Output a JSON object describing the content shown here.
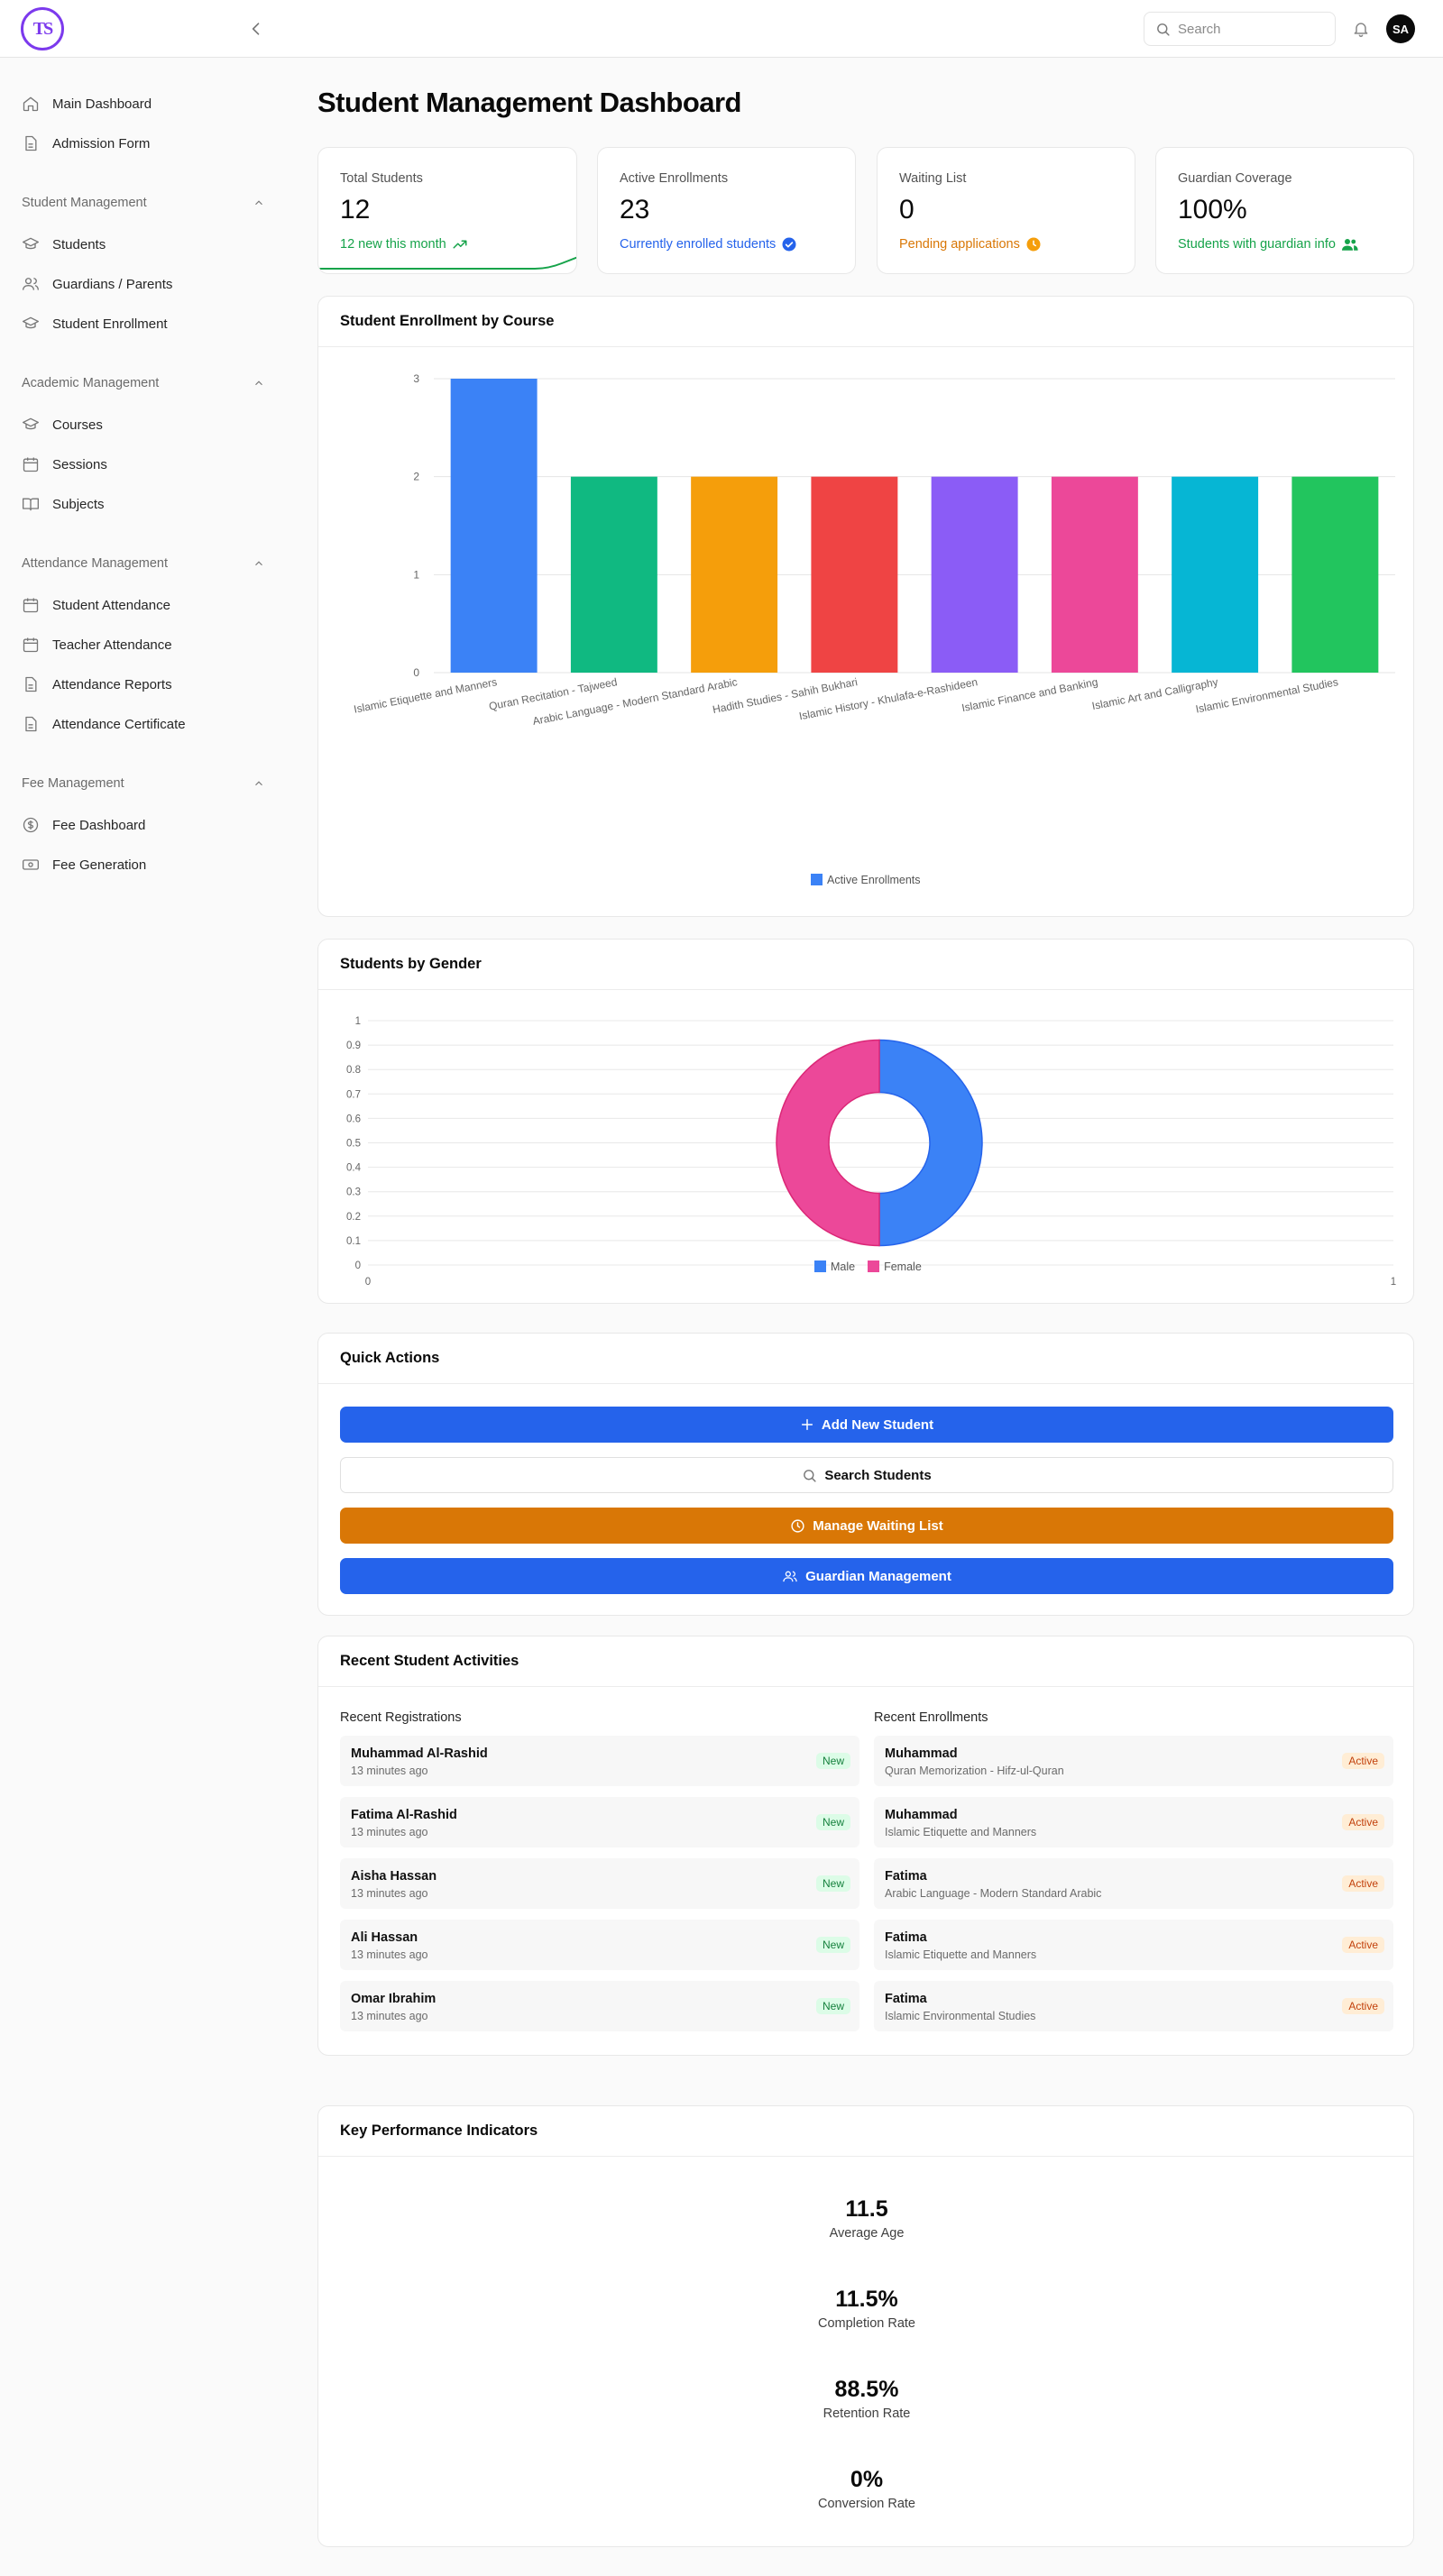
{
  "header": {
    "logo_text": "TS",
    "search_placeholder": "Search",
    "avatar_initials": "SA"
  },
  "sidebar": {
    "top_items": [
      {
        "label": "Main Dashboard",
        "icon": "home-icon"
      },
      {
        "label": "Admission Form",
        "icon": "document-icon"
      }
    ],
    "groups": [
      {
        "title": "Student Management",
        "items": [
          {
            "label": "Students",
            "icon": "graduation-cap-icon"
          },
          {
            "label": "Guardians / Parents",
            "icon": "users-icon"
          },
          {
            "label": "Student Enrollment",
            "icon": "graduation-cap-icon"
          }
        ]
      },
      {
        "title": "Academic Management",
        "items": [
          {
            "label": "Courses",
            "icon": "graduation-cap-icon"
          },
          {
            "label": "Sessions",
            "icon": "calendar-icon"
          },
          {
            "label": "Subjects",
            "icon": "book-icon"
          }
        ]
      },
      {
        "title": "Attendance Management",
        "items": [
          {
            "label": "Student Attendance",
            "icon": "calendar-icon"
          },
          {
            "label": "Teacher Attendance",
            "icon": "calendar-icon"
          },
          {
            "label": "Attendance Reports",
            "icon": "document-icon"
          },
          {
            "label": "Attendance Certificate",
            "icon": "document-icon"
          }
        ]
      },
      {
        "title": "Fee Management",
        "items": [
          {
            "label": "Fee Dashboard",
            "icon": "dollar-circle-icon"
          },
          {
            "label": "Fee Generation",
            "icon": "banknote-icon"
          }
        ]
      }
    ]
  },
  "page": {
    "title": "Student Management Dashboard"
  },
  "stats": [
    {
      "label": "Total Students",
      "value": "12",
      "sub": "12 new this month",
      "color": "#16a34a",
      "icon": "trending-up-icon"
    },
    {
      "label": "Active Enrollments",
      "value": "23",
      "sub": "Currently enrolled students",
      "color": "#2563eb",
      "icon": "check-circle-icon"
    },
    {
      "label": "Waiting List",
      "value": "0",
      "sub": "Pending applications",
      "color": "#d97706",
      "icon": "clock-icon"
    },
    {
      "label": "Guardian Coverage",
      "value": "100%",
      "sub": "Students with guardian info",
      "color": "#16a34a",
      "icon": "users-icon"
    }
  ],
  "enrollment_chart": {
    "title": "Student Enrollment by Course",
    "legend": "Active Enrollments",
    "legend_color": "#3b82f6"
  },
  "gender_chart": {
    "title": "Students by Gender",
    "legend": [
      {
        "label": "Male",
        "color": "#3b82f6"
      },
      {
        "label": "Female",
        "color": "#ec4899"
      }
    ]
  },
  "chart_data": [
    {
      "type": "bar",
      "title": "Student Enrollment by Course",
      "categories": [
        "Islamic Etiquette and Manners",
        "Quran Recitation - Tajweed",
        "Arabic Language - Modern Standard Arabic",
        "Hadith Studies - Sahih Bukhari",
        "Islamic History - Khulafa-e-Rashideen",
        "Islamic Finance and Banking",
        "Islamic Art and Calligraphy",
        "Islamic Environmental Studies"
      ],
      "series": [
        {
          "name": "Active Enrollments",
          "values": [
            3,
            2,
            2,
            2,
            2,
            2,
            2,
            2
          ]
        }
      ],
      "bar_colors": [
        "#3b82f6",
        "#10b981",
        "#f59e0b",
        "#ef4444",
        "#8b5cf6",
        "#ec4899",
        "#06b6d4",
        "#22c55e"
      ],
      "yticks": [
        "0",
        "1",
        "2",
        "3"
      ],
      "ylim": [
        0,
        3
      ],
      "grid": true,
      "legend": "bottom"
    },
    {
      "type": "pie",
      "title": "Students by Gender",
      "categories": [
        "Male",
        "Female"
      ],
      "values": [
        50,
        50
      ],
      "colors": [
        "#3b82f6",
        "#ec4899"
      ],
      "yticks": [
        "0",
        "0.1",
        "0.2",
        "0.3",
        "0.4",
        "0.5",
        "0.6",
        "0.7",
        "0.8",
        "0.9",
        "1"
      ],
      "xticks": [
        "0",
        "1"
      ],
      "legend": "bottom"
    }
  ],
  "quick_actions": {
    "title": "Quick Actions",
    "buttons": [
      {
        "label": "Add New Student",
        "icon": "plus-icon",
        "bg": "#2563eb",
        "fg": "#ffffff"
      },
      {
        "label": "Search Students",
        "icon": "search-icon",
        "bg": "#ffffff",
        "fg": "#111111"
      },
      {
        "label": "Manage Waiting List",
        "icon": "clock-icon",
        "bg": "#d97706",
        "fg": "#ffffff"
      },
      {
        "label": "Guardian Management",
        "icon": "users-icon",
        "bg": "#2563eb",
        "fg": "#ffffff"
      }
    ]
  },
  "activities": {
    "title": "Recent Student Activities",
    "registrations_title": "Recent Registrations",
    "enrollments_title": "Recent Enrollments",
    "registrations": [
      {
        "name": "Muhammad Al-Rashid",
        "sub": "13 minutes ago",
        "badge": "New"
      },
      {
        "name": "Fatima Al-Rashid",
        "sub": "13 minutes ago",
        "badge": "New"
      },
      {
        "name": "Aisha Hassan",
        "sub": "13 minutes ago",
        "badge": "New"
      },
      {
        "name": "Ali Hassan",
        "sub": "13 minutes ago",
        "badge": "New"
      },
      {
        "name": "Omar Ibrahim",
        "sub": "13 minutes ago",
        "badge": "New"
      }
    ],
    "enrollments": [
      {
        "name": "Muhammad",
        "sub": "Quran Memorization - Hifz-ul-Quran",
        "badge": "Active"
      },
      {
        "name": "Muhammad",
        "sub": "Islamic Etiquette and Manners",
        "badge": "Active"
      },
      {
        "name": "Fatima",
        "sub": "Arabic Language - Modern Standard Arabic",
        "badge": "Active"
      },
      {
        "name": "Fatima",
        "sub": "Islamic Etiquette and Manners",
        "badge": "Active"
      },
      {
        "name": "Fatima",
        "sub": "Islamic Environmental Studies",
        "badge": "Active"
      }
    ]
  },
  "kpis": {
    "title": "Key Performance Indicators",
    "items": [
      {
        "value": "11.5",
        "label": "Average Age"
      },
      {
        "value": "11.5%",
        "label": "Completion Rate"
      },
      {
        "value": "88.5%",
        "label": "Retention Rate"
      },
      {
        "value": "0%",
        "label": "Conversion Rate"
      }
    ]
  }
}
